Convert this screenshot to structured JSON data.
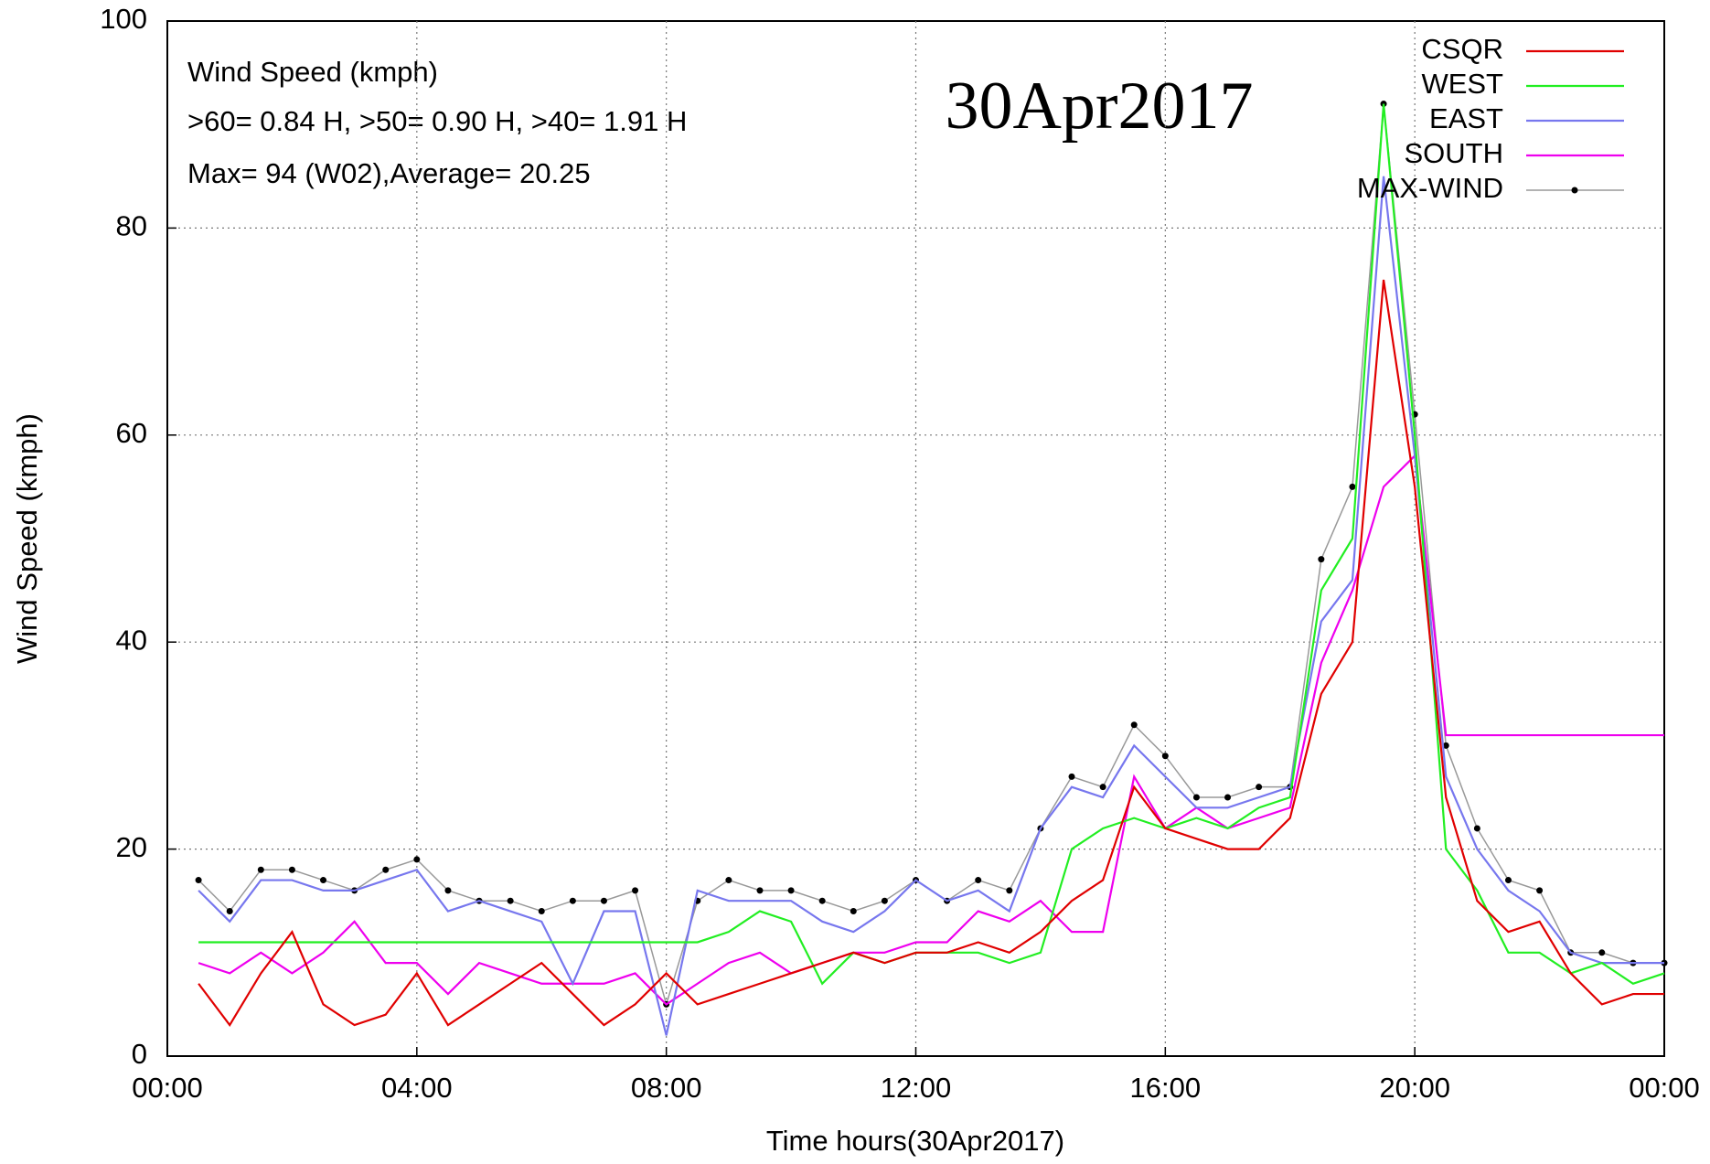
{
  "chart_data": {
    "type": "line",
    "ylabel": "Wind Speed (kmph)",
    "xlabel": "Time hours(30Apr2017)",
    "annotations": [
      "Wind Speed (kmph)",
      ">60=  0.84 H, >50=  0.90 H, >40=  1.91 H",
      "Max= 94 (W02),Average= 20.25"
    ],
    "date_label": "30Apr2017",
    "xlim": [
      0,
      24
    ],
    "ylim": [
      0,
      100
    ],
    "xticks": [
      {
        "value": 0,
        "label": "00:00"
      },
      {
        "value": 4,
        "label": "04:00"
      },
      {
        "value": 8,
        "label": "08:00"
      },
      {
        "value": 12,
        "label": "12:00"
      },
      {
        "value": 16,
        "label": "16:00"
      },
      {
        "value": 20,
        "label": "20:00"
      },
      {
        "value": 24,
        "label": "00:00"
      }
    ],
    "yticks": [
      0,
      20,
      40,
      60,
      80,
      100
    ],
    "grid": true,
    "legend": "top-right",
    "x": [
      0.5,
      1,
      1.5,
      2,
      2.5,
      3,
      3.5,
      4,
      4.5,
      5,
      5.5,
      6,
      6.5,
      7,
      7.5,
      8,
      8.5,
      9,
      9.5,
      10,
      10.5,
      11,
      11.5,
      12,
      12.5,
      13,
      13.5,
      14,
      14.5,
      15,
      15.5,
      16,
      16.5,
      17,
      17.5,
      18,
      18.5,
      19,
      19.5,
      20,
      20.5,
      21,
      21.5,
      22,
      22.5,
      23,
      23.5,
      24
    ],
    "series": [
      {
        "name": "CSQR",
        "color": "#e00000",
        "values": [
          7,
          3,
          8,
          12,
          5,
          3,
          4,
          8,
          3,
          5,
          7,
          9,
          6,
          3,
          5,
          8,
          5,
          6,
          7,
          8,
          9,
          10,
          9,
          10,
          10,
          11,
          10,
          12,
          15,
          17,
          26,
          22,
          21,
          20,
          20,
          23,
          35,
          40,
          75,
          55,
          25,
          15,
          12,
          13,
          8,
          5,
          6,
          6
        ]
      },
      {
        "name": "WEST",
        "color": "#22ee22",
        "values": [
          11,
          11,
          11,
          11,
          11,
          11,
          11,
          11,
          11,
          11,
          11,
          11,
          11,
          11,
          11,
          11,
          11,
          12,
          14,
          13,
          7,
          10,
          9,
          10,
          10,
          10,
          9,
          10,
          20,
          22,
          23,
          22,
          23,
          22,
          24,
          25,
          45,
          50,
          92,
          60,
          20,
          16,
          10,
          10,
          8,
          9,
          7,
          8
        ]
      },
      {
        "name": "EAST",
        "color": "#7777ee",
        "values": [
          16,
          13,
          17,
          17,
          16,
          16,
          17,
          18,
          14,
          15,
          14,
          13,
          7,
          14,
          14,
          2,
          16,
          15,
          15,
          15,
          13,
          12,
          14,
          17,
          15,
          16,
          14,
          22,
          26,
          25,
          30,
          27,
          24,
          24,
          25,
          26,
          42,
          46,
          85,
          58,
          27,
          20,
          16,
          14,
          10,
          9,
          9,
          9
        ]
      },
      {
        "name": "SOUTH",
        "color": "#ee00ee",
        "values": [
          9,
          8,
          10,
          8,
          10,
          13,
          9,
          9,
          6,
          9,
          8,
          7,
          7,
          7,
          8,
          5,
          7,
          9,
          10,
          8,
          9,
          10,
          10,
          11,
          11,
          14,
          13,
          15,
          12,
          12,
          27,
          22,
          24,
          22,
          23,
          24,
          38,
          45,
          55,
          58,
          31,
          31,
          31,
          31,
          31,
          31,
          31,
          31
        ]
      },
      {
        "name": "MAX-WIND",
        "color": "#999999",
        "marker": "#000000",
        "values": [
          17,
          14,
          18,
          18,
          17,
          16,
          18,
          19,
          16,
          15,
          15,
          14,
          15,
          15,
          16,
          5,
          15,
          17,
          16,
          16,
          15,
          14,
          15,
          17,
          15,
          17,
          16,
          22,
          27,
          26,
          32,
          29,
          25,
          25,
          26,
          26,
          48,
          55,
          92,
          62,
          30,
          22,
          17,
          16,
          10,
          10,
          9,
          9
        ]
      }
    ]
  }
}
